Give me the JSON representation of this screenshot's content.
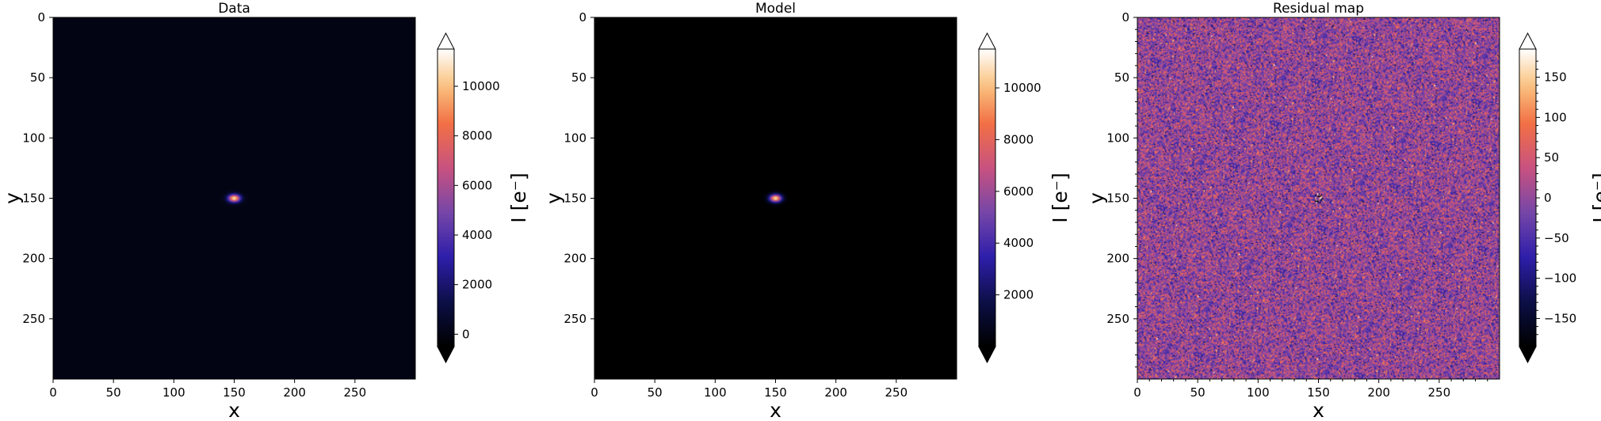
{
  "chart_data": [
    {
      "type": "heatmap",
      "title": "Data",
      "xlabel": "x",
      "ylabel": "y",
      "xlim": [
        0,
        300
      ],
      "ylim": [
        300,
        0
      ],
      "xticks": [
        "0",
        "50",
        "100",
        "150",
        "200",
        "250"
      ],
      "yticks": [
        "0",
        "50",
        "100",
        "150",
        "200",
        "250"
      ],
      "image": {
        "kind": "point_source",
        "background": 0,
        "peak": 11000,
        "center": [
          150,
          150
        ],
        "sigma": [
          3.5,
          2.2
        ]
      },
      "colorbar": {
        "label": "I [e⁻]",
        "range": [
          -500,
          11500
        ],
        "ticks": [
          "0",
          "2000",
          "4000",
          "6000",
          "8000",
          "10000"
        ],
        "tick_values": [
          0,
          2000,
          4000,
          6000,
          8000,
          10000
        ],
        "extend": "both"
      }
    },
    {
      "type": "heatmap",
      "title": "Model",
      "xlabel": "x",
      "ylabel": "y",
      "xlim": [
        0,
        300
      ],
      "ylim": [
        300,
        0
      ],
      "xticks": [
        "0",
        "50",
        "100",
        "150",
        "200",
        "250"
      ],
      "yticks": [
        "0",
        "50",
        "100",
        "150",
        "200",
        "250"
      ],
      "image": {
        "kind": "point_source",
        "background": 0,
        "peak": 11000,
        "center": [
          150,
          150
        ],
        "sigma": [
          3.5,
          2.2
        ]
      },
      "colorbar": {
        "label": "I [e⁻]",
        "range": [
          0,
          11500
        ],
        "ticks": [
          "2000",
          "4000",
          "6000",
          "8000",
          "10000"
        ],
        "tick_values": [
          2000,
          4000,
          6000,
          8000,
          10000
        ],
        "extend": "both"
      }
    },
    {
      "type": "heatmap",
      "title": "Residual map",
      "xlabel": "x",
      "ylabel": "y",
      "xlim": [
        0,
        300
      ],
      "ylim": [
        300,
        0
      ],
      "xticks": [
        "0",
        "50",
        "100",
        "150",
        "200",
        "250"
      ],
      "yticks": [
        "0",
        "50",
        "100",
        "150",
        "200",
        "250"
      ],
      "image": {
        "kind": "noise",
        "mean": 0,
        "std": 45,
        "center_feature": [
          150,
          150
        ]
      },
      "colorbar": {
        "label": "I [e⁻]",
        "range": [
          -185,
          185
        ],
        "ticks": [
          "−150",
          "−100",
          "−50",
          "0",
          "50",
          "100",
          "150"
        ],
        "tick_values": [
          -150,
          -100,
          -50,
          0,
          50,
          100,
          150
        ],
        "extend": "both"
      }
    }
  ]
}
